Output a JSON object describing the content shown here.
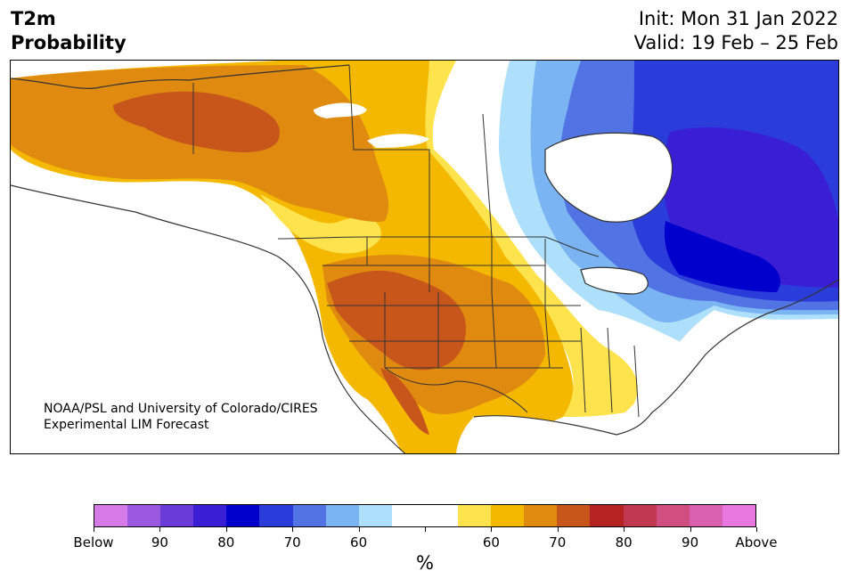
{
  "title": {
    "line1": "T2m",
    "line2": "Probability"
  },
  "forecast": {
    "init": "Init: Mon 31 Jan 2022",
    "valid": "Valid: 19 Feb – 25 Feb"
  },
  "credit": {
    "line1": "NOAA/PSL and University of Colorado/CIRES",
    "line2": "Experimental LIM Forecast"
  },
  "legend": {
    "colors": [
      "#d67ae8",
      "#9b58e0",
      "#6a3bd8",
      "#3a1ed6",
      "#0000cc",
      "#2a3ddb",
      "#5273e3",
      "#7ab4f2",
      "#aee0fb",
      "#ffffff",
      "#ffffff",
      "#ffe34d",
      "#f5b800",
      "#e08a10",
      "#c8561a",
      "#b52222",
      "#c0384f",
      "#d04f80",
      "#d95fb0",
      "#e878e0"
    ],
    "tick_labels": [
      "Below",
      "90",
      "80",
      "70",
      "60",
      "",
      "60",
      "70",
      "80",
      "90",
      "Above"
    ],
    "unit": "%"
  },
  "map": {
    "colors": {
      "ocean": "#ffffff",
      "yellow": "#ffe34d",
      "gold": "#f5b800",
      "orange": "#e08a10",
      "darkorange": "#c8561a",
      "lightblue": "#aee0fb",
      "skyblue": "#7ab4f2",
      "midblue": "#5273e3",
      "blue": "#2a3ddb",
      "navy": "#0000cc",
      "indigo": "#3a1ed6",
      "border": "#333333"
    }
  }
}
